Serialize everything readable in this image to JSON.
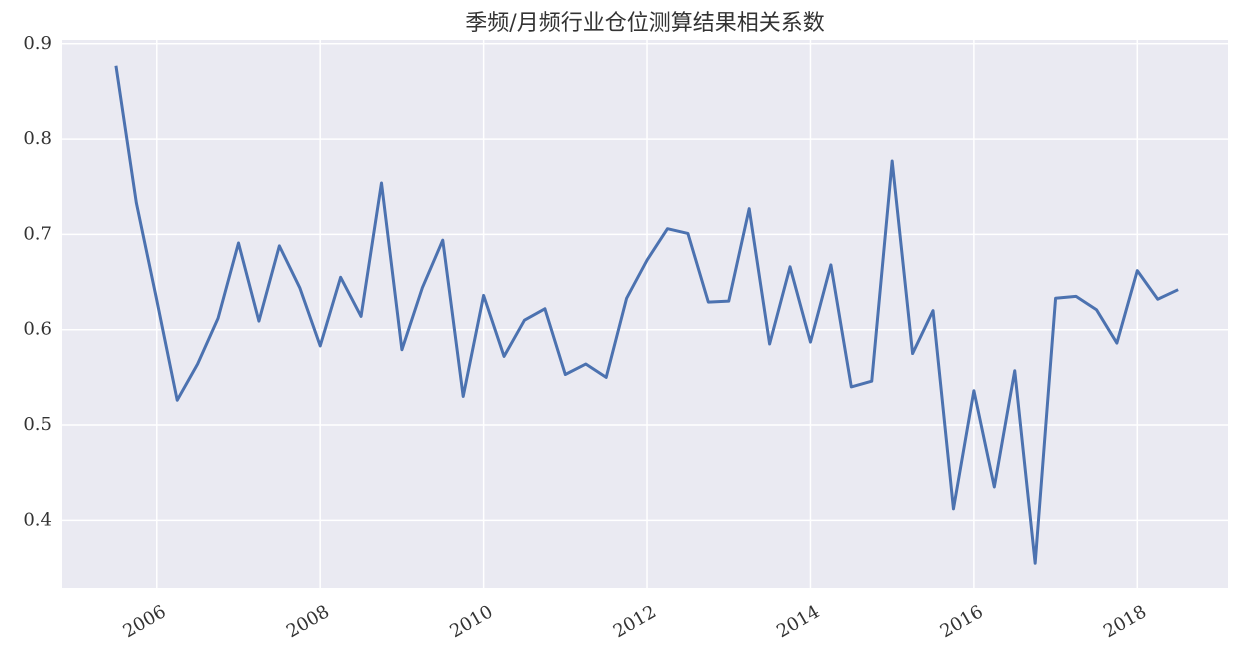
{
  "chart_data": {
    "type": "line",
    "title": "季频/月频行业仓位测算结果相关系数",
    "x": [
      2005.5,
      2005.75,
      2006,
      2006.25,
      2006.5,
      2006.75,
      2007,
      2007.25,
      2007.5,
      2007.75,
      2008,
      2008.25,
      2008.5,
      2008.75,
      2009,
      2009.25,
      2009.5,
      2009.75,
      2010,
      2010.25,
      2010.5,
      2010.75,
      2011,
      2011.25,
      2011.5,
      2011.75,
      2012,
      2012.25,
      2012.5,
      2012.75,
      2013,
      2013.25,
      2013.5,
      2013.75,
      2014,
      2014.25,
      2014.5,
      2014.75,
      2015,
      2015.25,
      2015.5,
      2015.75,
      2016,
      2016.25,
      2016.5,
      2016.75,
      2017,
      2017.25,
      2017.5,
      2017.75,
      2018,
      2018.25,
      2018.5
    ],
    "series": [
      {
        "color": "#4c72b0",
        "values": [
          0.877,
          0.733,
          0.631,
          0.526,
          0.564,
          0.612,
          0.691,
          0.609,
          0.688,
          0.644,
          0.583,
          0.655,
          0.614,
          0.754,
          0.579,
          0.644,
          0.694,
          0.53,
          0.636,
          0.572,
          0.61,
          0.622,
          0.553,
          0.564,
          0.55,
          0.633,
          0.673,
          0.706,
          0.701,
          0.629,
          0.63,
          0.727,
          0.585,
          0.666,
          0.587,
          0.668,
          0.54,
          0.546,
          0.777,
          0.575,
          0.62,
          0.412,
          0.536,
          0.435,
          0.557,
          0.355,
          0.633,
          0.635,
          0.621,
          0.586,
          0.662,
          0.632,
          0.642
        ]
      }
    ],
    "xlim": [
      2004.84,
      2019.11
    ],
    "xticks": [
      2006,
      2008,
      2010,
      2012,
      2014,
      2016,
      2018
    ],
    "ylim": [
      0.329,
      0.904
    ],
    "yticks": [
      0.4,
      0.5,
      0.6,
      0.7,
      0.8,
      0.9
    ],
    "grid": true
  }
}
